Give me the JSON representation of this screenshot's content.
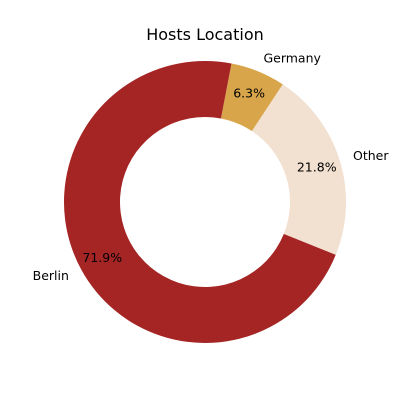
{
  "chart_data": {
    "type": "pie",
    "title": "Hosts Location",
    "donut": true,
    "categories": [
      "Germany",
      "Berlin",
      "Other"
    ],
    "values": [
      6.3,
      71.9,
      21.8
    ],
    "percent_labels": [
      "6.3%",
      "71.9%",
      "21.8%"
    ],
    "colors": [
      "#d9a54a",
      "#a52525",
      "#f2e0d0"
    ],
    "legend": "none"
  }
}
